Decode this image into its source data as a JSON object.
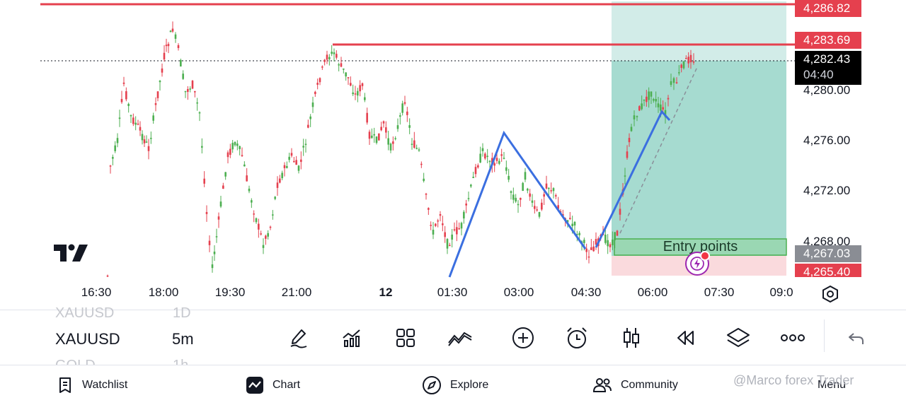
{
  "chart": {
    "price_axis": {
      "labels": [
        "4,280.00",
        "4,276.00",
        "4,272.00",
        "4,268.00"
      ],
      "tags": {
        "stop": "4,286.82",
        "level": "4,283.69",
        "current": "4,282.43",
        "countdown": "04:40",
        "entry": "4,267.03",
        "bottom": "4,265.40"
      }
    },
    "time_axis": {
      "labels": [
        "16:30",
        "18:00",
        "19:30",
        "21:00",
        "12",
        "01:30",
        "03:00",
        "04:30",
        "06:00",
        "07:30",
        "09:0"
      ]
    },
    "annotation": {
      "entry_points": "Entry points"
    },
    "colors": {
      "up": "#4caf50",
      "down": "#e5404e",
      "trendline": "#3b6fe0",
      "tp_zone": "#a6dbd0",
      "sl_zone": "#fadadd",
      "level_line": "#e5404e"
    }
  },
  "toolbar": {
    "symbol_above": "XAUUSD",
    "interval_above": "1D",
    "symbol": "XAUUSD",
    "interval": "5m",
    "symbol_below": "GOLD",
    "interval_below": "1h",
    "tools": [
      "pencil-icon",
      "indicators-icon",
      "grid-layout-icon",
      "pattern-icon",
      "plus-circle-icon",
      "alarm-icon",
      "candles-icon",
      "replay-icon",
      "layers-icon",
      "more-icon",
      "undo-icon"
    ]
  },
  "nav": {
    "watchlist": "Watchlist",
    "chart": "Chart",
    "explore": "Explore",
    "community": "Community",
    "menu": "Menu"
  },
  "watermark": "@Marco forex Trader"
}
